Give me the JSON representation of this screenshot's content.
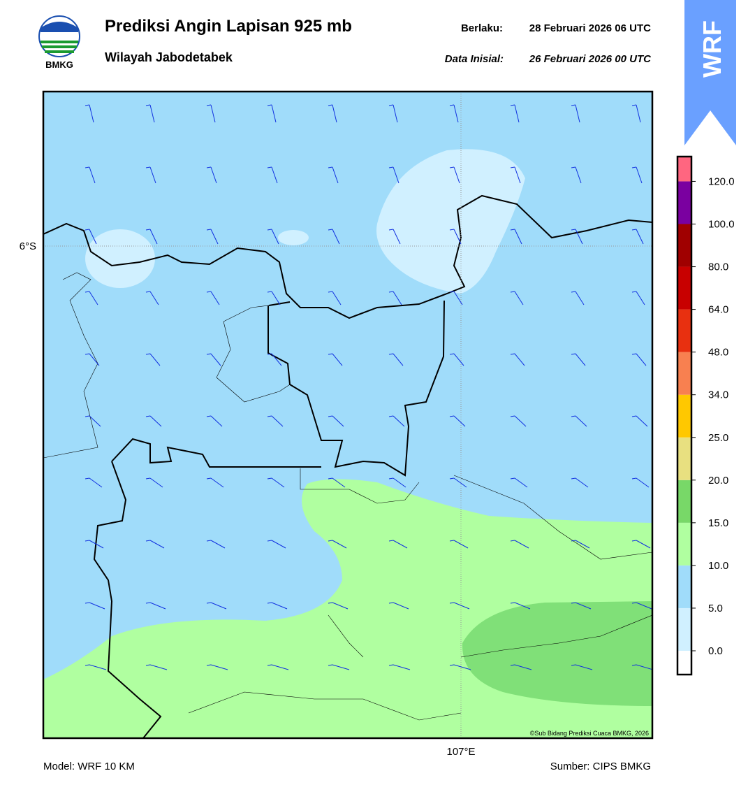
{
  "header": {
    "title": "Prediksi Angin Lapisan 925 mb",
    "subtitle": "Wilayah Jabodetabek",
    "valid_label": "Berlaku:",
    "valid_time": "28 Februari 2026 06 UTC",
    "init_label": "Data Inisial:",
    "init_time": "26 Februari 2026 00 UTC",
    "logo_text": "BMKG",
    "badge": "WRF"
  },
  "map": {
    "lat_label": "6°S",
    "lon_label": "107°E",
    "copyright": "©Sub Bidang Prediksi Cuaca BMKG, 2026"
  },
  "colorbar": {
    "colors": [
      "#ffffff",
      "#d0f0ff",
      "#a0dcfa",
      "#b0ffa0",
      "#78d868",
      "#e8e080",
      "#ffc800",
      "#f88050",
      "#e83010",
      "#c80000",
      "#a00000",
      "#7a00a0",
      "#ff6680"
    ],
    "ticks": [
      "0.0",
      "5.0",
      "10.0",
      "15.0",
      "20.0",
      "25.0",
      "34.0",
      "48.0",
      "64.0",
      "80.0",
      "100.0",
      "120.0"
    ]
  },
  "footer": {
    "model": "Model: WRF 10 KM",
    "source": "Sumber: CIPS BMKG"
  }
}
